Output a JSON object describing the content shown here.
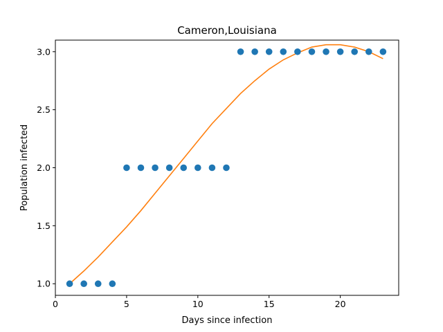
{
  "chart_data": {
    "type": "scatter",
    "title": "Cameron,Louisiana",
    "xlabel": "Days since infection",
    "ylabel": "Population infected",
    "xlim": [
      0,
      24.1
    ],
    "ylim": [
      0.9,
      3.1
    ],
    "x_ticks": [
      0,
      5,
      10,
      15,
      20
    ],
    "x_tick_labels": [
      "0",
      "5",
      "10",
      "15",
      "20"
    ],
    "y_ticks": [
      1.0,
      1.5,
      2.0,
      2.5,
      3.0
    ],
    "y_tick_labels": [
      "1.0",
      "1.5",
      "2.0",
      "2.5",
      "3.0"
    ],
    "grid": false,
    "scatter": {
      "color": "#1f77b4",
      "x": [
        1,
        2,
        3,
        4,
        5,
        6,
        7,
        8,
        9,
        10,
        11,
        12,
        13,
        14,
        15,
        16,
        17,
        18,
        19,
        20,
        21,
        22,
        23
      ],
      "y": [
        1,
        1,
        1,
        1,
        2,
        2,
        2,
        2,
        2,
        2,
        2,
        2,
        3,
        3,
        3,
        3,
        3,
        3,
        3,
        3,
        3,
        3,
        3
      ]
    },
    "fit": {
      "color": "#ff7f0e",
      "x": [
        1,
        2,
        3,
        4,
        5,
        6,
        7,
        8,
        9,
        10,
        11,
        12,
        13,
        14,
        15,
        16,
        17,
        18,
        19,
        20,
        21,
        22,
        23
      ],
      "y": [
        1.0,
        1.11,
        1.23,
        1.36,
        1.49,
        1.63,
        1.78,
        1.93,
        2.08,
        2.23,
        2.38,
        2.51,
        2.64,
        2.75,
        2.85,
        2.93,
        2.99,
        3.04,
        3.06,
        3.06,
        3.04,
        3.0,
        2.94
      ]
    }
  }
}
